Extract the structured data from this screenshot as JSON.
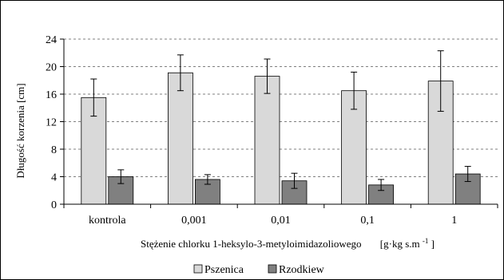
{
  "chart_data": {
    "type": "bar",
    "categories": [
      "kontrola",
      "0,001",
      "0,01",
      "0,1",
      "1"
    ],
    "series": [
      {
        "name": "Pszenica",
        "values": [
          15.5,
          19.1,
          18.6,
          16.5,
          17.9
        ],
        "errors": [
          2.7,
          2.6,
          2.5,
          2.7,
          4.4
        ],
        "color": "#d9d9d9"
      },
      {
        "name": "Rzodkiew",
        "values": [
          4.0,
          3.6,
          3.4,
          2.8,
          4.4
        ],
        "errors": [
          1.0,
          0.7,
          1.1,
          0.8,
          1.1
        ],
        "color": "#808080"
      }
    ],
    "xlabel": "Stężenie chlorku 1-heksylo-3-metyloimidazoliowego",
    "xlabel_unit_main": "[g·kg s.m",
    "xlabel_unit_sup": "-1",
    "xlabel_unit_end": "]",
    "ylabel": "Długość korzenia [cm]",
    "ylim": [
      0,
      24
    ],
    "yticks": [
      0,
      4,
      8,
      12,
      16,
      20,
      24
    ],
    "ytick_labels": [
      "0",
      "4",
      "8",
      "12",
      "16",
      "20",
      "24"
    ],
    "grid": true,
    "legend_position": "bottom"
  }
}
